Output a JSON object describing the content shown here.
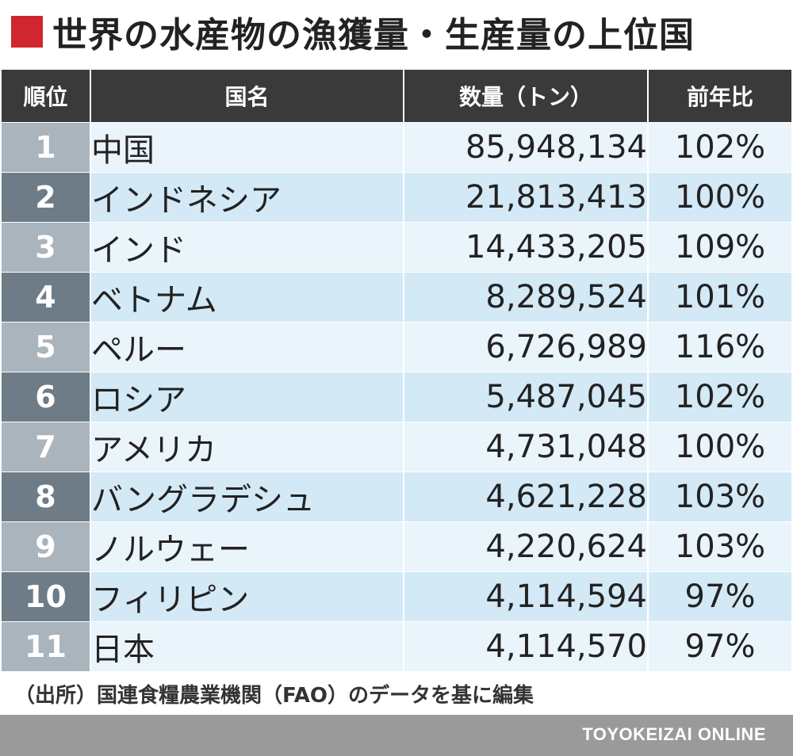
{
  "title": "世界の水産物の漁獲量・生産量の上位国",
  "colors": {
    "title_square": "#d0262f",
    "header_bg": "#3a3a3a",
    "row_light": "#eaf4fb",
    "row_dark": "#d3e9f6",
    "rank_light": "#a9b4bc",
    "rank_dark": "#6e7c87",
    "footer_bg": "#9a9a9a"
  },
  "chart_data": {
    "type": "table",
    "columns": [
      "順位",
      "国名",
      "数量（トン）",
      "前年比"
    ],
    "rows": [
      {
        "rank": "1",
        "country": "中国",
        "quantity": "85,948,134",
        "ratio": "102%"
      },
      {
        "rank": "2",
        "country": "インドネシア",
        "quantity": "21,813,413",
        "ratio": "100%"
      },
      {
        "rank": "3",
        "country": "インド",
        "quantity": "14,433,205",
        "ratio": "109%"
      },
      {
        "rank": "4",
        "country": "ベトナム",
        "quantity": "8,289,524",
        "ratio": "101%"
      },
      {
        "rank": "5",
        "country": "ペルー",
        "quantity": "6,726,989",
        "ratio": "116%"
      },
      {
        "rank": "6",
        "country": "ロシア",
        "quantity": "5,487,045",
        "ratio": "102%"
      },
      {
        "rank": "7",
        "country": "アメリカ",
        "quantity": "4,731,048",
        "ratio": "100%"
      },
      {
        "rank": "8",
        "country": "バングラデシュ",
        "quantity": "4,621,228",
        "ratio": "103%"
      },
      {
        "rank": "9",
        "country": "ノルウェー",
        "quantity": "4,220,624",
        "ratio": "103%"
      },
      {
        "rank": "10",
        "country": "フィリピン",
        "quantity": "4,114,594",
        "ratio": "97%"
      },
      {
        "rank": "11",
        "country": "日本",
        "quantity": "4,114,570",
        "ratio": "97%"
      }
    ]
  },
  "source": "（出所）国連食糧農業機関（FAO）のデータを基に編集",
  "footer": {
    "brand": "TOYOKEIZAI ONLINE"
  }
}
